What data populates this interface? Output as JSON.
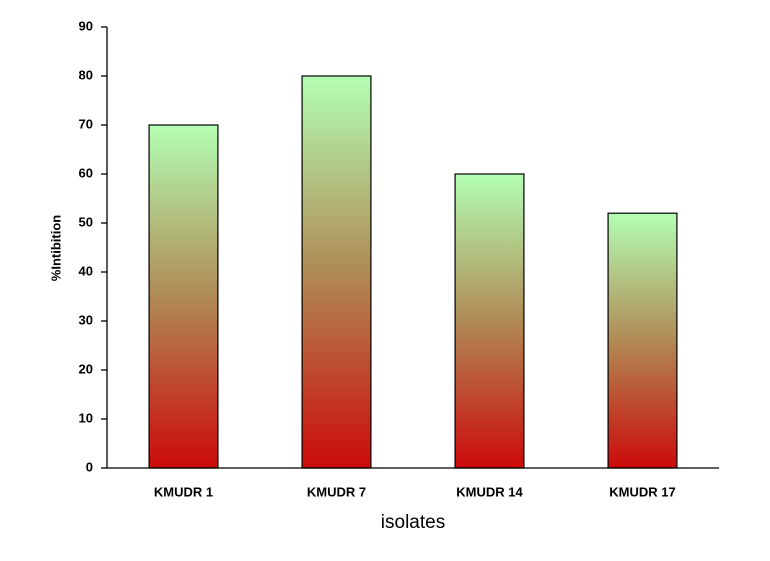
{
  "chart_data": {
    "type": "bar",
    "x_label": "isolates",
    "y_label": "%Intibition",
    "categories": [
      "KMUDR 1",
      "KMUDR 7",
      "KMUDR 14",
      "KMUDR 17"
    ],
    "values": [
      70,
      80,
      60,
      52
    ],
    "gradient_colors": [
      "#b3ffb3",
      "#b08a55",
      "#cc0a0a"
    ],
    "ylim": [
      0,
      90
    ],
    "yticks": [
      0,
      10,
      20,
      30,
      40,
      50,
      60,
      70,
      80,
      90
    ],
    "grid": false
  }
}
